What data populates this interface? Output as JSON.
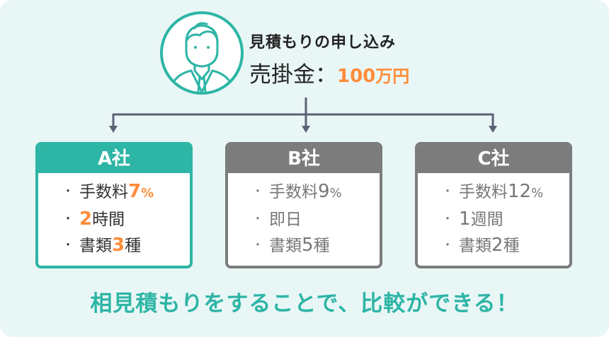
{
  "header": {
    "title": "見積もりの申し込み",
    "amount_label": "売掛金：",
    "amount_value": "100",
    "amount_unit": "万円"
  },
  "colors": {
    "accent": "#2db5a5",
    "highlight": "#ff8c3a",
    "inactive": "#7c7c7c",
    "connector": "#5b6275"
  },
  "companies": [
    {
      "name": "A社",
      "highlighted": true,
      "items": [
        {
          "pre": "手数料",
          "val": "7",
          "suf": "%"
        },
        {
          "pre": "",
          "val": "2",
          "suf": "時間"
        },
        {
          "pre": "書類",
          "val": "3",
          "suf": "種"
        }
      ]
    },
    {
      "name": "B社",
      "highlighted": false,
      "items": [
        {
          "pre": "手数料",
          "val": "9",
          "suf": "%"
        },
        {
          "pre": "即日",
          "val": "",
          "suf": ""
        },
        {
          "pre": "書類",
          "val": "5",
          "suf": "種"
        }
      ]
    },
    {
      "name": "C社",
      "highlighted": false,
      "items": [
        {
          "pre": "手数料",
          "val": "12",
          "suf": "%"
        },
        {
          "pre": "",
          "val": "1",
          "suf": "週間"
        },
        {
          "pre": "書類",
          "val": "2",
          "suf": "種"
        }
      ]
    }
  ],
  "bullet": "・",
  "footer": "相見積もりをすることで、比較ができる！"
}
